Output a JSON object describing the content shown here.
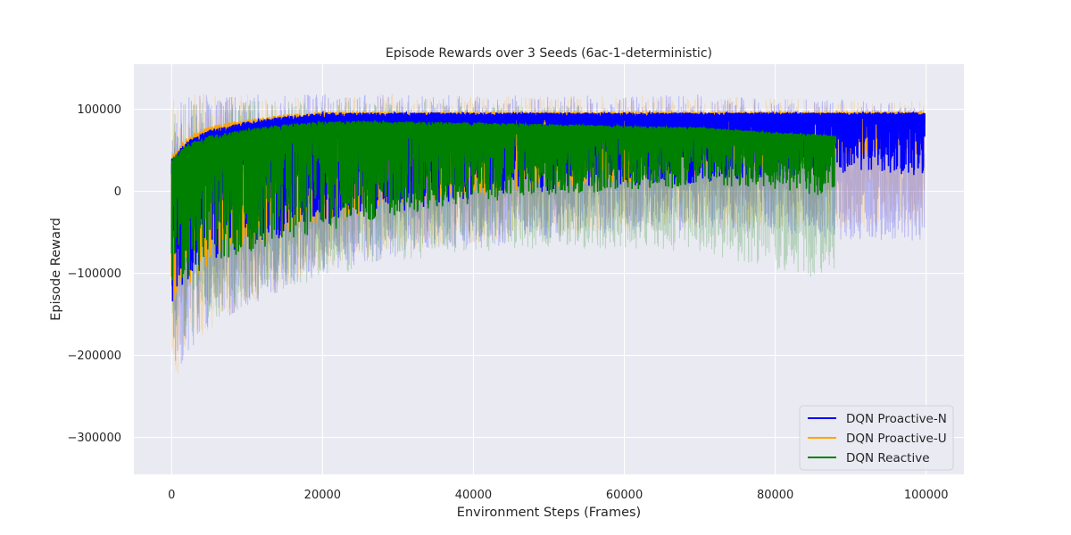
{
  "chart_data": {
    "type": "line",
    "title": "Episode Rewards over 3 Seeds (6ac-1-deterministic)",
    "xlabel": "Environment Steps (Frames)",
    "ylabel": "Episode Reward",
    "xlim": [
      -5000,
      105000
    ],
    "ylim": [
      -345000,
      155000
    ],
    "xticks": [
      0,
      20000,
      40000,
      60000,
      80000,
      100000
    ],
    "yticks": [
      -300000,
      -200000,
      -100000,
      0,
      100000
    ],
    "xtick_labels": [
      "0",
      "20000",
      "40000",
      "60000",
      "80000",
      "100000"
    ],
    "ytick_labels": [
      "−300000",
      "−200000",
      "−100000",
      "0",
      "100000"
    ],
    "grid": true,
    "background": "#eaeaf2",
    "legend_position": "lower-right",
    "series": [
      {
        "name": "DQN Proactive-N",
        "color": "#0000ff",
        "x_end": 99800,
        "x": [
          0,
          2000,
          5000,
          10000,
          15000,
          20000,
          25000,
          30000,
          40000,
          50000,
          60000,
          70000,
          80000,
          90000,
          99800
        ],
        "mean_high": [
          40000,
          62000,
          75000,
          85000,
          92000,
          96000,
          96000,
          96000,
          96000,
          96000,
          96000,
          96000,
          96000,
          96000,
          96000
        ],
        "mean_low": [
          -140000,
          -110000,
          -90000,
          -70000,
          -55000,
          -45000,
          -35000,
          -25000,
          -10000,
          0,
          5000,
          10000,
          15000,
          20000,
          20000
        ],
        "band_high": [
          110000,
          115000,
          118000,
          118000,
          118000,
          118000,
          118000,
          118000,
          118000,
          118000,
          118000,
          118000,
          115000,
          112000,
          110000
        ],
        "band_low": [
          -230000,
          -200000,
          -170000,
          -140000,
          -120000,
          -100000,
          -90000,
          -80000,
          -70000,
          -60000,
          -50000,
          -50000,
          -50000,
          -60000,
          -60000
        ]
      },
      {
        "name": "DQN Proactive-U",
        "color": "#ffa500",
        "x_end": 99800,
        "x": [
          0,
          2000,
          5000,
          10000,
          15000,
          20000,
          25000,
          30000,
          40000,
          50000,
          60000,
          70000,
          80000,
          90000,
          99800
        ],
        "mean_high": [
          45000,
          65000,
          80000,
          88000,
          94000,
          97000,
          97000,
          97000,
          97000,
          97000,
          97000,
          97000,
          97000,
          97000,
          97000
        ],
        "mean_low": [
          -150000,
          -115000,
          -90000,
          -70000,
          -55000,
          -40000,
          -30000,
          -20000,
          -5000,
          5000,
          10000,
          20000,
          30000,
          40000,
          45000
        ],
        "band_high": [
          115000,
          118000,
          120000,
          120000,
          120000,
          120000,
          120000,
          120000,
          120000,
          118000,
          118000,
          116000,
          114000,
          112000,
          110000
        ],
        "band_low": [
          -240000,
          -200000,
          -170000,
          -140000,
          -120000,
          -100000,
          -85000,
          -75000,
          -65000,
          -55000,
          -50000,
          -45000,
          -45000,
          -45000,
          -40000
        ]
      },
      {
        "name": "DQN Reactive",
        "color": "#008000",
        "x_end": 88000,
        "x": [
          0,
          2000,
          5000,
          10000,
          15000,
          20000,
          25000,
          30000,
          40000,
          50000,
          60000,
          70000,
          75000,
          80000,
          85000,
          88000
        ],
        "mean_high": [
          40000,
          58000,
          68000,
          76000,
          82000,
          85000,
          86000,
          85000,
          84000,
          82000,
          80000,
          78000,
          75000,
          72000,
          70000,
          68000
        ],
        "mean_low": [
          -130000,
          -110000,
          -90000,
          -75000,
          -60000,
          -50000,
          -40000,
          -30000,
          -15000,
          -5000,
          0,
          5000,
          5000,
          0,
          -5000,
          -5000
        ],
        "band_high": [
          100000,
          108000,
          110000,
          112000,
          112000,
          112000,
          110000,
          110000,
          108000,
          105000,
          102000,
          100000,
          98000,
          95000,
          90000,
          88000
        ],
        "band_low": [
          -200000,
          -180000,
          -160000,
          -140000,
          -120000,
          -105000,
          -95000,
          -85000,
          -75000,
          -70000,
          -70000,
          -75000,
          -85000,
          -95000,
          -105000,
          -100000
        ]
      }
    ]
  }
}
